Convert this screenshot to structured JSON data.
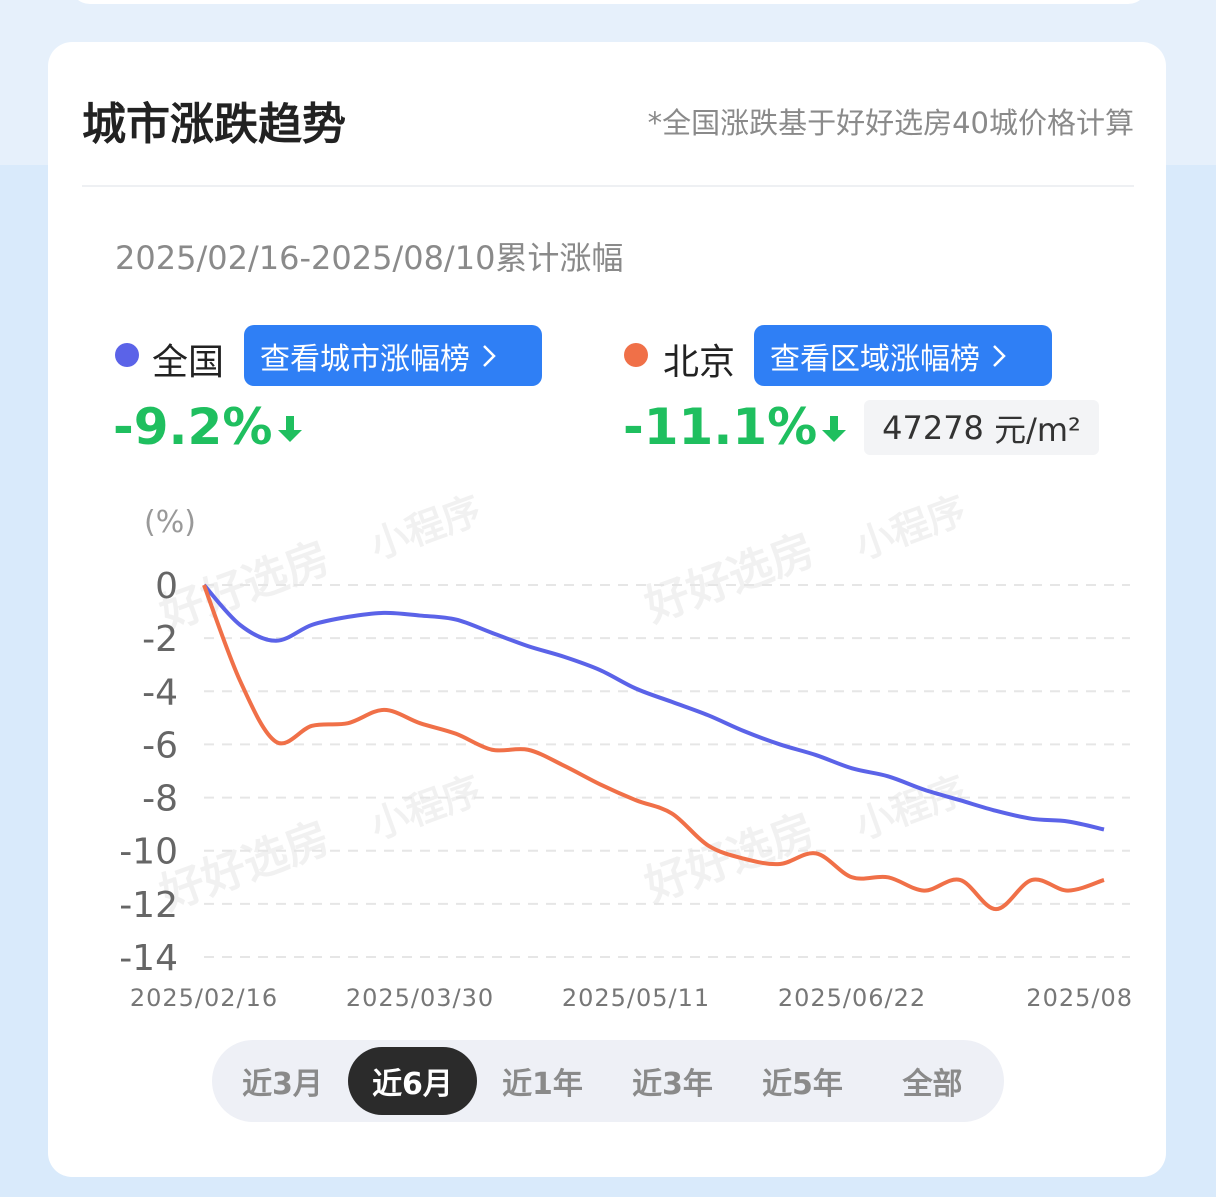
{
  "header": {
    "title": "城市涨跌趋势",
    "note": "*全国涨跌基于好好选房40城价格计算"
  },
  "period": "2025/02/16-2025/08/10累计涨幅",
  "summary": [
    {
      "button": "查看城市涨幅榜",
      "change": "-9.2%"
    },
    {
      "button": "查看区域涨幅榜",
      "change": "-11.1%",
      "price": "47278",
      "price_unit": "元/m²"
    }
  ],
  "watermark": [
    "好好选房",
    "小程序"
  ],
  "chart_data": {
    "type": "line",
    "y_label": "(%)",
    "categories": [
      "2025/02/16",
      null,
      null,
      null,
      null,
      null,
      "2025/03/30",
      null,
      null,
      null,
      null,
      null,
      "2025/05/11",
      null,
      null,
      null,
      null,
      null,
      "2025/06/22",
      null,
      null,
      null,
      null,
      null,
      "2025/08",
      null
    ],
    "series": [
      {
        "name": "全国",
        "color": "#5b63e8",
        "values": [
          0,
          -1.5,
          -2.1,
          -1.5,
          -1.2,
          -1.05,
          -1.15,
          -1.3,
          -1.8,
          -2.3,
          -2.7,
          -3.2,
          -3.9,
          -4.4,
          -4.9,
          -5.5,
          -6.0,
          -6.4,
          -6.9,
          -7.2,
          -7.7,
          -8.1,
          -8.5,
          -8.8,
          -8.9,
          -9.2
        ]
      },
      {
        "name": "北京",
        "color": "#f07048",
        "values": [
          0,
          -3.6,
          -5.9,
          -5.3,
          -5.2,
          -4.7,
          -5.2,
          -5.6,
          -6.2,
          -6.2,
          -6.8,
          -7.5,
          -8.1,
          -8.6,
          -9.8,
          -10.3,
          -10.5,
          -10.1,
          -11.0,
          -11.0,
          -11.5,
          -11.1,
          -12.2,
          -11.1,
          -11.5,
          -11.1
        ]
      }
    ],
    "ylim": [
      -14,
      0
    ],
    "yticks": [
      0,
      -2,
      -4,
      -6,
      -8,
      -10,
      -12,
      -14
    ],
    "grid": true
  },
  "tabs": [
    "近3月",
    "近6月",
    "近1年",
    "近3年",
    "近5年",
    "全部"
  ],
  "active_tab": 1
}
